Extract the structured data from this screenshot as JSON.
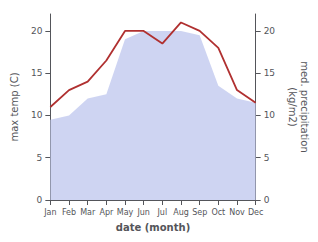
{
  "chart_data": {
    "type": "line",
    "xlabel": "date (month)",
    "ylabel": "max temp (C)",
    "y2label": "med. precipitation\n(kg/m2)",
    "categories": [
      "Jan",
      "Feb",
      "Mar",
      "Apr",
      "May",
      "Jun",
      "Jul",
      "Aug",
      "Sep",
      "Oct",
      "Nov",
      "Dec"
    ],
    "series": [
      {
        "type": "line",
        "color": "#b03030",
        "values": [
          11,
          13,
          14,
          16.5,
          20,
          20,
          18.5,
          21,
          20,
          18,
          13,
          11.5
        ]
      },
      {
        "type": "area",
        "color": "#c5cdf0",
        "axis": "y2",
        "values": [
          9.5,
          10,
          12,
          12.5,
          19,
          20,
          20,
          20,
          19.5,
          13.5,
          12,
          11.5
        ]
      }
    ],
    "ylim": [
      0,
      22
    ],
    "yticks": [
      0,
      5,
      10,
      15,
      20
    ],
    "y2lim": [
      0,
      22
    ],
    "y2ticks": [
      0,
      5,
      10,
      15,
      20
    ],
    "grid": false
  }
}
